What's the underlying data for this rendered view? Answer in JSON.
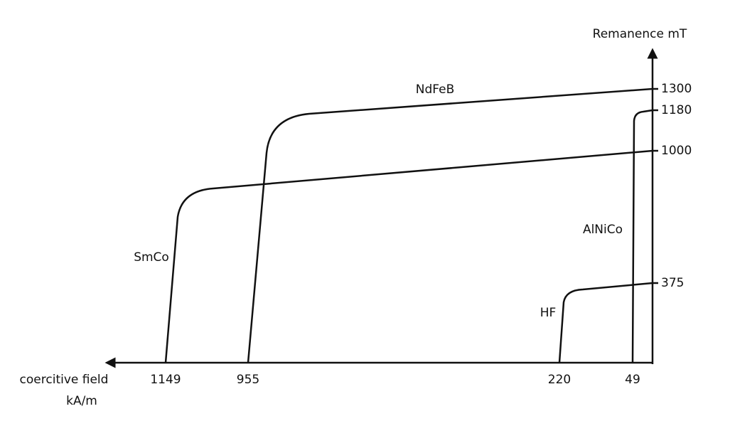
{
  "axes": {
    "y_label": "Remanence mT",
    "x_label_line1": "coercitive field",
    "x_label_line2": "kA/m"
  },
  "y_ticks": [
    "1300",
    "1180",
    "1000",
    "375"
  ],
  "x_ticks": [
    "1149",
    "955",
    "220",
    "49"
  ],
  "curves": [
    "NdFeB",
    "SmCo",
    "AlNiCo",
    "HF"
  ]
}
